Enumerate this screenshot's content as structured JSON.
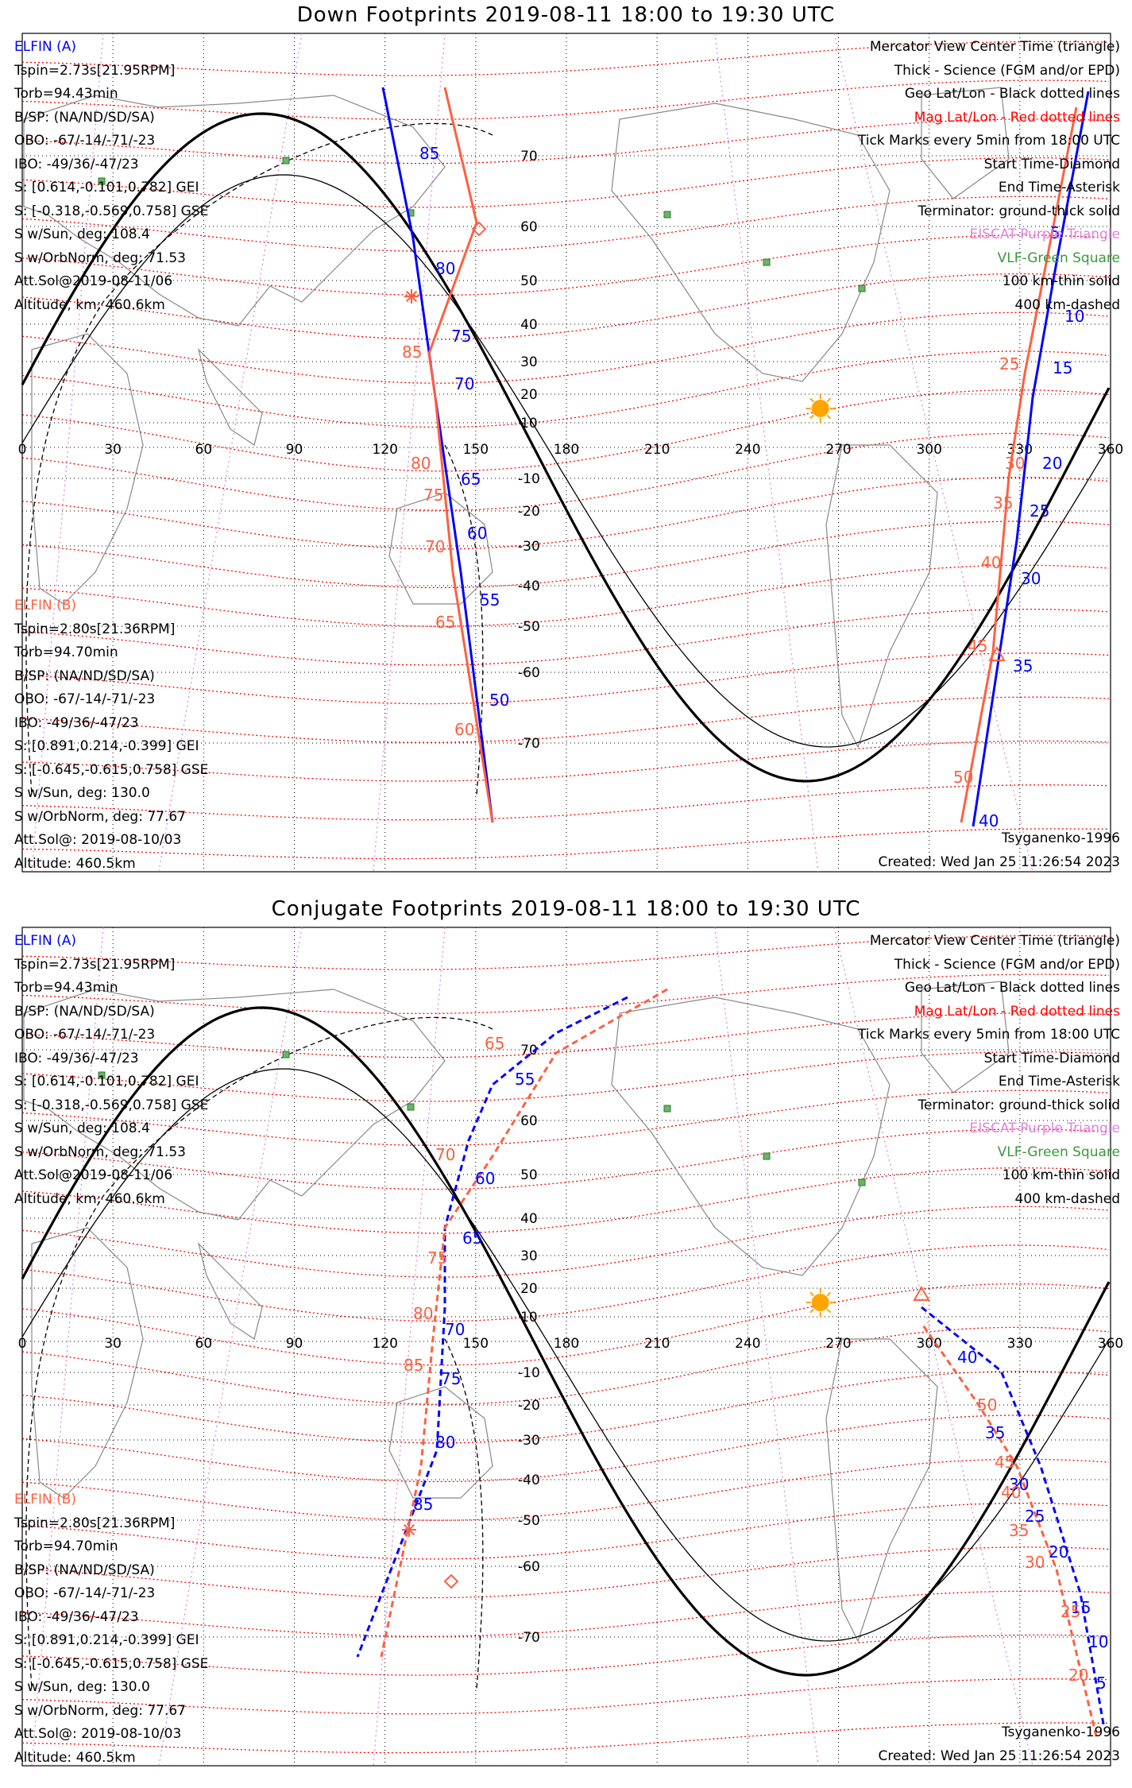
{
  "colors": {
    "elfin_a": "#0000ff",
    "elfin_b": "#ff6040",
    "mag_grid": "#ff0000",
    "geo_grid": "#000000",
    "eiscat": "#e080e0",
    "vlf": "#3a9a3a",
    "sun": "#ffa500"
  },
  "panels": [
    {
      "title": "Down Footprints 2019-08-11 18:00 to 19:30 UTC",
      "elfin_a": {
        "name": "ELFIN (A)",
        "lines": [
          "Tspin=2.73s[21.95RPM]",
          "Torb=94.43min",
          "B/SP: (NA/ND/SD/SA)",
          "OBO: -67/-14/-71/-23",
          "IBO: -49/36/-47/23",
          "S: [0.614,-0.101,0.782] GEI",
          "S: [-0.318,-0.569,0.758] GSE",
          "S w/Sun, deg: 108.4",
          "S w/OrbNorm, deg: 71.53",
          "Att.Sol@2019-08-11/06",
          "Altitude, km: 460.6km"
        ]
      },
      "elfin_b": {
        "name": "ELFIN (B)",
        "lines": [
          "Tspin=2.80s[21.36RPM]",
          "Torb=94.70min",
          "B/SP: (NA/ND/SD/SA)",
          "OBO: -67/-14/-71/-23",
          "IBO: -49/36/-47/23",
          "S: [0.891,0.214,-0.399] GEI",
          "S: [-0.645,-0.615,0.758] GSE",
          "S w/Sun, deg: 130.0",
          "S w/OrbNorm, deg: 77.67",
          "Att.Sol@: 2019-08-10/03",
          "Altitude: 460.5km"
        ]
      },
      "legend": [
        "Mercator View Center Time (triangle)",
        "Thick - Science (FGM and/or EPD)",
        "Geo Lat/Lon - Black dotted lines",
        "Mag Lat/Lon - Red dotted lines",
        "Tick Marks every 5min from 18:00 UTC",
        "Start Time-Diamond",
        "End Time-Asterisk",
        "Terminator: ground-thick solid",
        "EISCAT-Purple Triangle",
        "VLF-Green Square",
        "100 km-thin solid",
        "400 km-dashed"
      ],
      "model": "Tsyganenko-1996",
      "created": "Created: Wed Jan 25 11:26:54 2023",
      "track_a_labels": [
        "85",
        "80",
        "75",
        "70",
        "65",
        "60",
        "55",
        "50",
        "5",
        "10",
        "15",
        "20",
        "25",
        "30",
        "35",
        "40"
      ],
      "track_b_labels": [
        "85",
        "80",
        "75",
        "70",
        "65",
        "60",
        "25",
        "30",
        "35",
        "40",
        "45",
        "50"
      ]
    },
    {
      "title": "Conjugate Footprints 2019-08-11 18:00 to 19:30 UTC",
      "elfin_a": {
        "name": "ELFIN (A)",
        "lines": [
          "Tspin=2.73s[21.95RPM]",
          "Torb=94.43min",
          "B/SP: (NA/ND/SD/SA)",
          "OBO: -67/-14/-71/-23",
          "IBO: -49/36/-47/23",
          "S: [0.614,-0.101,0.782] GEI",
          "S: [-0.318,-0.569,0.758] GSE",
          "S w/Sun, deg: 108.4",
          "S w/OrbNorm, deg: 71.53",
          "Att.Sol@2019-08-11/06",
          "Altitude, km: 460.6km"
        ]
      },
      "elfin_b": {
        "name": "ELFIN (B)",
        "lines": [
          "Tspin=2.80s[21.36RPM]",
          "Torb=94.70min",
          "B/SP: (NA/ND/SD/SA)",
          "OBO: -67/-14/-71/-23",
          "IBO: -49/36/-47/23",
          "S: [0.891,0.214,-0.399] GEI",
          "S: [-0.645,-0.615,0.758] GSE",
          "S w/Sun, deg: 130.0",
          "S w/OrbNorm, deg: 77.67",
          "Att.Sol@: 2019-08-10/03",
          "Altitude: 460.5km"
        ]
      },
      "legend": [
        "Mercator View Center Time (triangle)",
        "Thick - Science (FGM and/or EPD)",
        "Geo Lat/Lon - Black dotted lines",
        "Mag Lat/Lon - Red dotted lines",
        "Tick Marks every 5min from 18:00 UTC",
        "Start Time-Diamond",
        "End Time-Asterisk",
        "Terminator: ground-thick solid",
        "EISCAT-Purple Triangle",
        "VLF-Green Square",
        "100 km-thin solid",
        "400 km-dashed"
      ],
      "model": "Tsyganenko-1996",
      "created": "Created: Wed Jan 25 11:26:54 2023",
      "track_a_labels": [
        "55",
        "60",
        "65",
        "70",
        "75",
        "80",
        "85",
        "5",
        "10",
        "15",
        "20",
        "25",
        "30",
        "35",
        "40"
      ],
      "track_b_labels": [
        "65",
        "70",
        "75",
        "80",
        "85",
        "20",
        "25",
        "30",
        "35",
        "40",
        "45",
        "50"
      ]
    }
  ],
  "axes": {
    "lon_labels": [
      "0",
      "30",
      "60",
      "90",
      "120",
      "150",
      "180",
      "210",
      "240",
      "270",
      "300",
      "330",
      "360"
    ],
    "lat_labels": [
      "70",
      "60",
      "50",
      "40",
      "30",
      "20",
      "10",
      "-10",
      "-20",
      "-30",
      "-40",
      "-50",
      "-60",
      "-70"
    ]
  }
}
